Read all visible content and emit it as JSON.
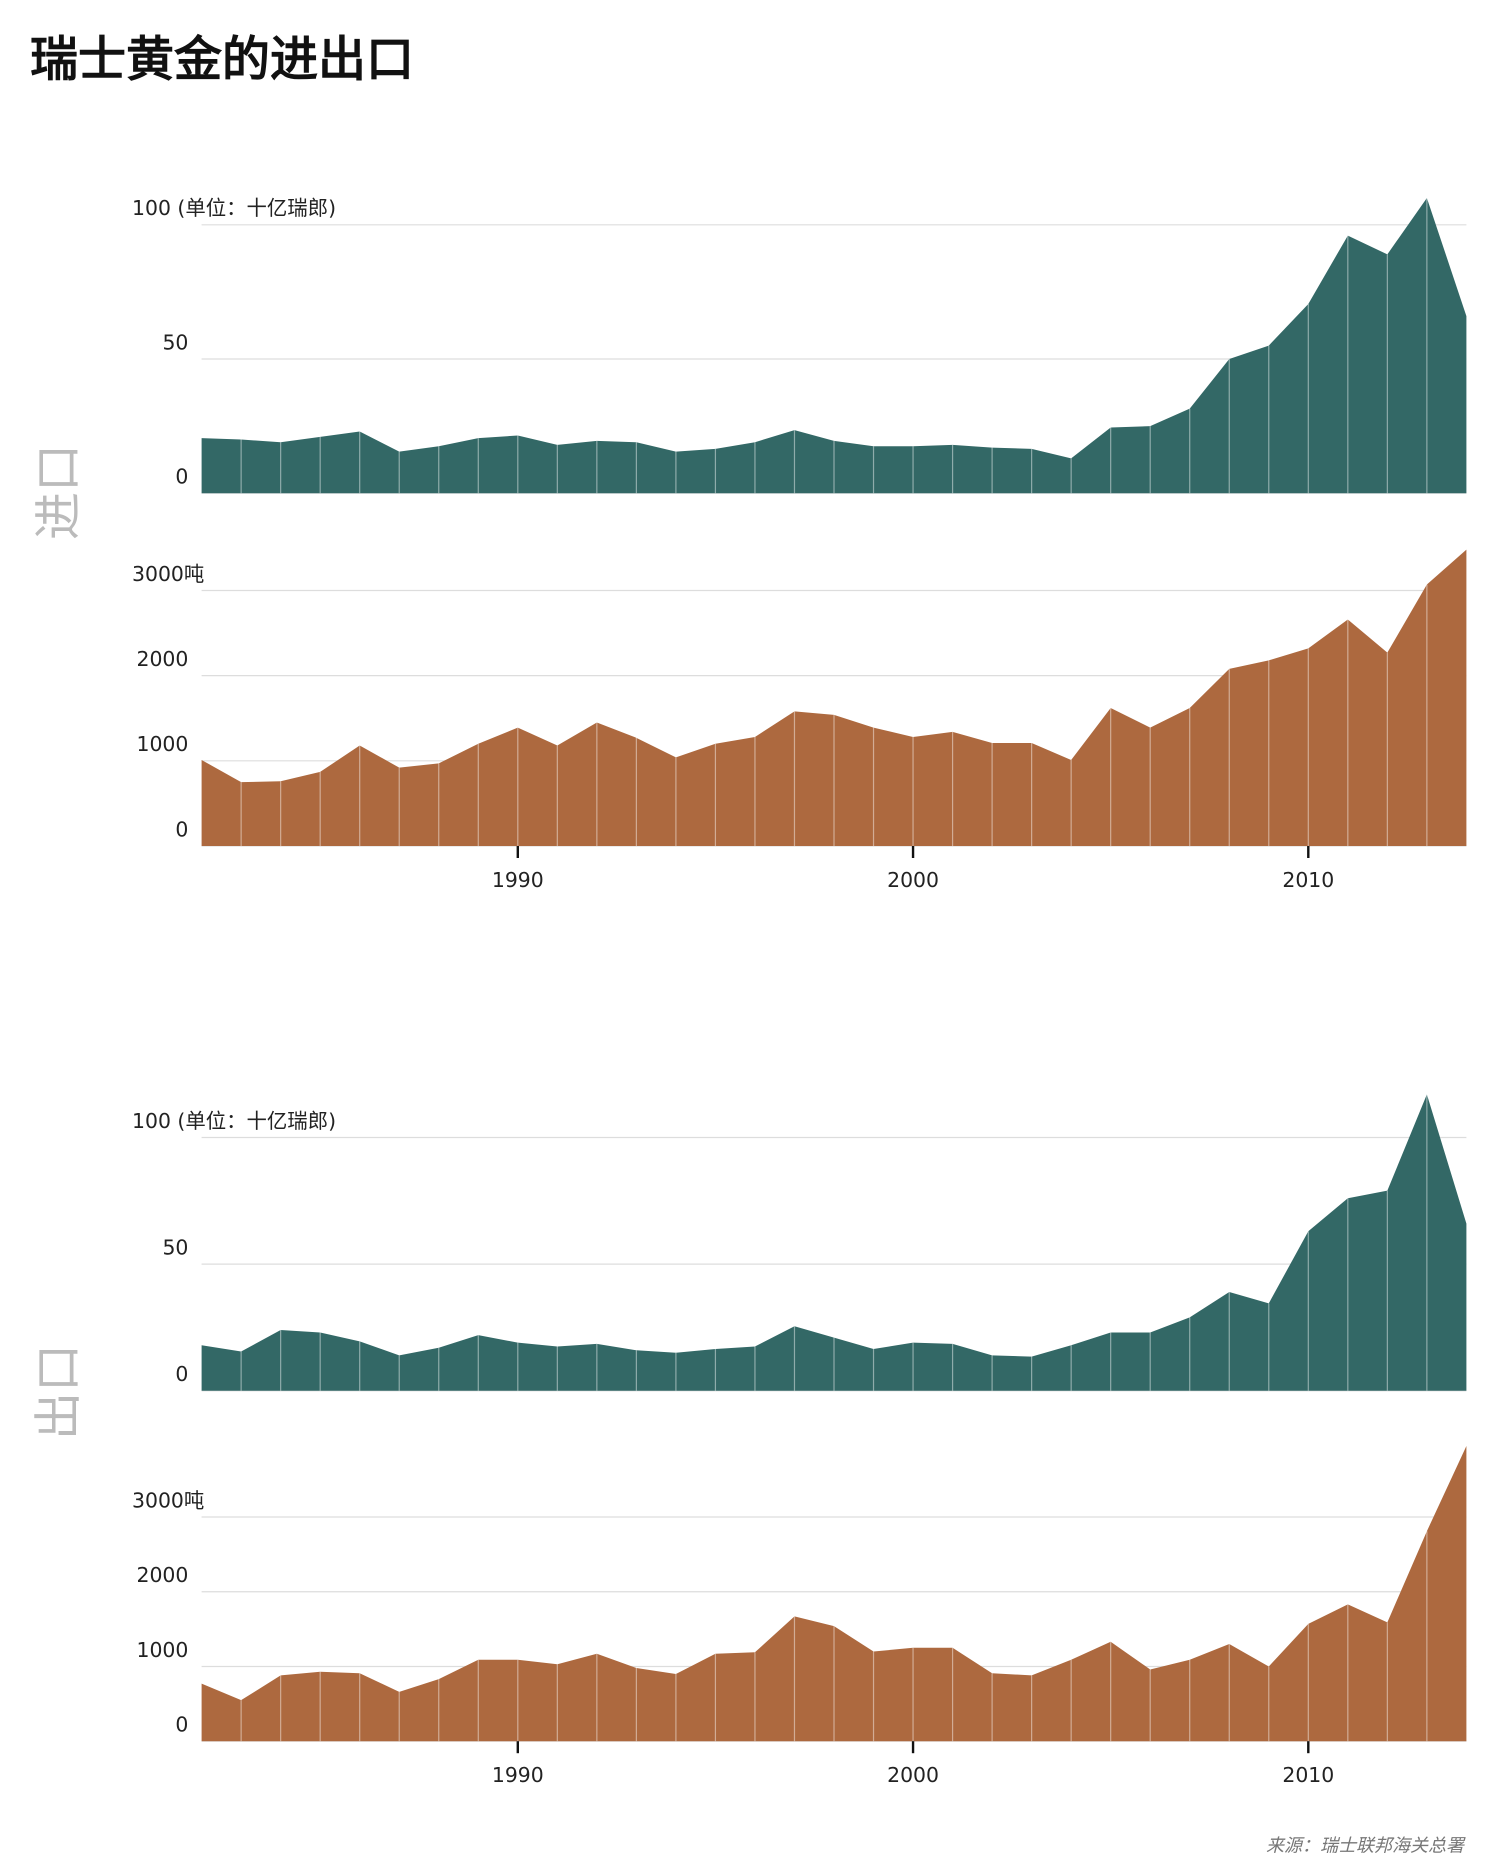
{
  "title": "瑞士黄金的进出口",
  "source": "来源：瑞士联邦海关总署",
  "section_labels": [
    "进口",
    "出口"
  ],
  "chart_data": [
    {
      "type": "area",
      "color": "#336866",
      "x": [
        1982,
        1983,
        1984,
        1985,
        1986,
        1987,
        1988,
        1989,
        1990,
        1991,
        1992,
        1993,
        1994,
        1995,
        1996,
        1997,
        1998,
        1999,
        2000,
        2001,
        2002,
        2003,
        2004,
        2005,
        2006,
        2007,
        2008,
        2009,
        2010,
        2011,
        2012,
        2013,
        2014
      ],
      "values": [
        20.5,
        20,
        19,
        21,
        23,
        15.5,
        17.5,
        20.5,
        21.5,
        18,
        19.5,
        19,
        15.5,
        16.5,
        19,
        23.5,
        19.5,
        17.5,
        17.5,
        18,
        17,
        16.5,
        13,
        24.5,
        25,
        31.5,
        50,
        55,
        70.5,
        96,
        89,
        110,
        66
      ],
      "xlim": [
        1982,
        2014
      ],
      "ylim": [
        0,
        110
      ],
      "yticks": [
        0,
        50,
        {
          "value": 100,
          "label": "100 (单位：十亿瑞郎)"
        }
      ],
      "grid": true
    },
    {
      "type": "area",
      "color": "#ad693f",
      "x": [
        1982,
        1983,
        1984,
        1985,
        1986,
        1987,
        1988,
        1989,
        1990,
        1991,
        1992,
        1993,
        1994,
        1995,
        1996,
        1997,
        1998,
        1999,
        2000,
        2001,
        2002,
        2003,
        2004,
        2005,
        2006,
        2007,
        2008,
        2009,
        2010,
        2011,
        2012,
        2013,
        2014
      ],
      "values": [
        1010,
        750,
        760,
        870,
        1180,
        920,
        970,
        1200,
        1390,
        1180,
        1450,
        1270,
        1040,
        1200,
        1280,
        1580,
        1540,
        1390,
        1280,
        1340,
        1210,
        1210,
        1010,
        1620,
        1390,
        1620,
        2080,
        2180,
        2320,
        2660,
        2270,
        3070,
        3480
      ],
      "xlim": [
        1982,
        2014
      ],
      "ylim": [
        0,
        3480
      ],
      "xticks": [
        1990,
        2000,
        2010
      ],
      "yticks": [
        0,
        1000,
        2000,
        {
          "value": 3000,
          "label": "3000吨"
        }
      ],
      "grid": true
    },
    {
      "type": "area",
      "color": "#336866",
      "x": [
        1982,
        1983,
        1984,
        1985,
        1986,
        1987,
        1988,
        1989,
        1990,
        1991,
        1992,
        1993,
        1994,
        1995,
        1996,
        1997,
        1998,
        1999,
        2000,
        2001,
        2002,
        2003,
        2004,
        2005,
        2006,
        2007,
        2008,
        2009,
        2010,
        2011,
        2012,
        2013,
        2014
      ],
      "values": [
        18,
        15.5,
        24,
        23,
        19.5,
        14,
        17,
        22,
        19,
        17.5,
        18.5,
        16,
        15,
        16.5,
        17.5,
        25.5,
        21,
        16.5,
        19,
        18.5,
        14,
        13.5,
        18,
        23,
        23,
        29,
        39,
        34.5,
        63,
        76,
        79,
        117,
        66
      ],
      "xlim": [
        1982,
        2014
      ],
      "ylim": [
        0,
        117
      ],
      "yticks": [
        0,
        50,
        {
          "value": 100,
          "label": "100 (单位：十亿瑞郎)"
        }
      ],
      "grid": true
    },
    {
      "type": "area",
      "color": "#ad693f",
      "x": [
        1982,
        1983,
        1984,
        1985,
        1986,
        1987,
        1988,
        1989,
        1990,
        1991,
        1992,
        1993,
        1994,
        1995,
        1996,
        1997,
        1998,
        1999,
        2000,
        2001,
        2002,
        2003,
        2004,
        2005,
        2006,
        2007,
        2008,
        2009,
        2010,
        2011,
        2012,
        2013,
        2014
      ],
      "values": [
        770,
        550,
        880,
        930,
        910,
        660,
        830,
        1090,
        1090,
        1030,
        1170,
        980,
        900,
        1170,
        1190,
        1670,
        1540,
        1200,
        1250,
        1250,
        910,
        880,
        1090,
        1330,
        960,
        1090,
        1300,
        1000,
        1570,
        1830,
        1590,
        2810,
        3950
      ],
      "xlim": [
        1982,
        2014
      ],
      "ylim": [
        0,
        3950
      ],
      "xticks": [
        1990,
        2000,
        2010
      ],
      "yticks": [
        0,
        1000,
        2000,
        {
          "value": 3000,
          "label": "3000吨"
        }
      ],
      "grid": true
    }
  ]
}
